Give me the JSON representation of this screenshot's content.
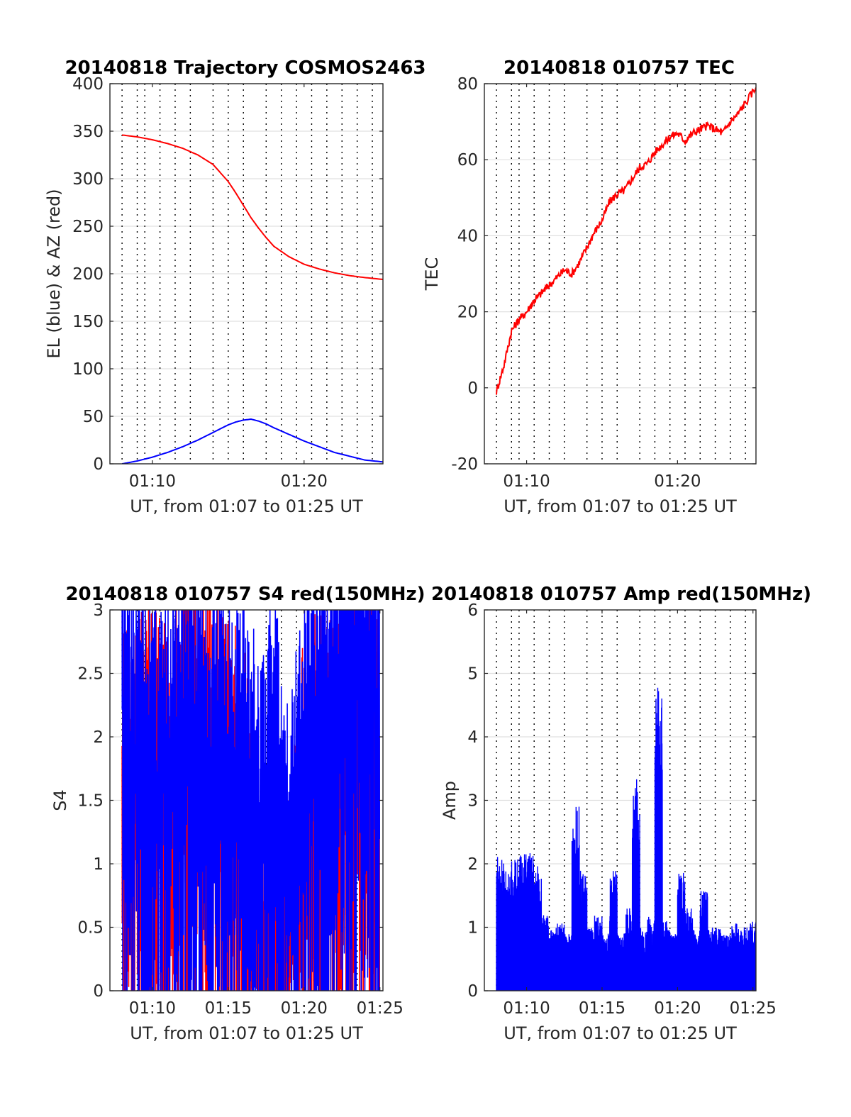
{
  "charts": [
    {
      "title": "20140818 Trajectory COSMOS2463",
      "xlabel": "UT, from 01:07 to 01:25 UT",
      "ylabel": "EL (blue) & AZ (red)",
      "xticks": [
        {
          "v": 10,
          "label": "01:10"
        },
        {
          "v": 20,
          "label": "01:20"
        }
      ],
      "yticks": [
        {
          "v": 0,
          "label": "0"
        },
        {
          "v": 50,
          "label": "50"
        },
        {
          "v": 100,
          "label": "100"
        },
        {
          "v": 150,
          "label": "150"
        },
        {
          "v": 200,
          "label": "200"
        },
        {
          "v": 250,
          "label": "250"
        },
        {
          "v": 300,
          "label": "300"
        },
        {
          "v": 350,
          "label": "350"
        },
        {
          "v": 400,
          "label": "400"
        }
      ]
    },
    {
      "title": "20140818 010757 TEC",
      "xlabel": "UT, from 01:07 to 01:25 UT",
      "ylabel": "TEC",
      "xticks": [
        {
          "v": 10,
          "label": "01:10"
        },
        {
          "v": 20,
          "label": "01:20"
        }
      ],
      "yticks": [
        {
          "v": -20,
          "label": "-20"
        },
        {
          "v": 0,
          "label": "0"
        },
        {
          "v": 20,
          "label": "20"
        },
        {
          "v": 40,
          "label": "40"
        },
        {
          "v": 60,
          "label": "60"
        },
        {
          "v": 80,
          "label": "80"
        }
      ]
    },
    {
      "title": "20140818 010757 S4 red(150MHz)",
      "xlabel": "UT, from 01:07 to 01:25 UT",
      "ylabel": "S4",
      "xticks": [
        {
          "v": 10,
          "label": "01:10"
        },
        {
          "v": 15,
          "label": "01:15"
        },
        {
          "v": 20,
          "label": "01:20"
        },
        {
          "v": 25,
          "label": "01:25"
        }
      ],
      "yticks": [
        {
          "v": 0,
          "label": "0"
        },
        {
          "v": 0.5,
          "label": "0.5"
        },
        {
          "v": 1,
          "label": "1"
        },
        {
          "v": 1.5,
          "label": "1.5"
        },
        {
          "v": 2,
          "label": "2"
        },
        {
          "v": 2.5,
          "label": "2.5"
        },
        {
          "v": 3,
          "label": "3"
        }
      ]
    },
    {
      "title": "20140818 010757 Amp red(150MHz)",
      "xlabel": "UT, from 01:07 to 01:25 UT",
      "ylabel": "Amp",
      "xticks": [
        {
          "v": 10,
          "label": "01:10"
        },
        {
          "v": 15,
          "label": "01:15"
        },
        {
          "v": 20,
          "label": "01:20"
        },
        {
          "v": 25,
          "label": "01:25"
        }
      ],
      "yticks": [
        {
          "v": 0,
          "label": "0"
        },
        {
          "v": 1,
          "label": "1"
        },
        {
          "v": 2,
          "label": "2"
        },
        {
          "v": 3,
          "label": "3"
        },
        {
          "v": 4,
          "label": "4"
        },
        {
          "v": 5,
          "label": "5"
        },
        {
          "v": 6,
          "label": "6"
        }
      ]
    }
  ],
  "chart_data": [
    {
      "type": "line",
      "title": "20140818 Trajectory COSMOS2463",
      "xlabel": "UT, from 01:07 to 01:25 UT",
      "ylabel": "EL (blue) & AZ (red)",
      "x_unit": "minutes after 01:00 UT",
      "xlim": [
        7.2,
        25.2
      ],
      "ylim": [
        0,
        400
      ],
      "grid": true,
      "series": [
        {
          "color": "#ff0000",
          "x": [
            8.0,
            9.0,
            10.0,
            11.0,
            12.0,
            13.0,
            14.0,
            15.0,
            15.5,
            16.0,
            16.5,
            17.0,
            17.5,
            18.0,
            19.0,
            20.0,
            21.0,
            22.0,
            23.0,
            24.0,
            25.2
          ],
          "values": [
            346,
            344,
            341,
            337,
            332,
            325,
            315,
            297,
            285,
            272,
            259,
            248,
            238,
            229,
            218,
            210,
            205,
            201,
            198,
            196,
            194
          ]
        },
        {
          "color": "#0000ff",
          "x": [
            8.0,
            9.0,
            10.0,
            11.0,
            12.0,
            13.0,
            14.0,
            15.0,
            15.5,
            16.0,
            16.5,
            17.0,
            17.5,
            18.0,
            19.0,
            20.0,
            21.0,
            22.0,
            23.0,
            24.0,
            25.2
          ],
          "values": [
            0,
            3,
            7,
            12,
            18,
            25,
            33,
            41,
            44,
            46,
            47,
            45,
            42,
            38,
            31,
            24,
            18,
            12,
            8,
            4,
            2
          ]
        }
      ]
    },
    {
      "type": "line",
      "title": "20140818 010757 TEC",
      "xlabel": "UT, from 01:07 to 01:25 UT",
      "ylabel": "TEC",
      "x_unit": "minutes after 01:00 UT",
      "xlim": [
        7.2,
        25.2
      ],
      "ylim": [
        -20,
        80
      ],
      "grid": true,
      "series": [
        {
          "color": "#ff0000",
          "x": [
            8.0,
            8.5,
            9.0,
            9.5,
            10.0,
            10.5,
            11.0,
            11.5,
            12.0,
            12.5,
            13.0,
            13.5,
            14.0,
            14.5,
            15.0,
            15.5,
            16.0,
            16.5,
            17.0,
            17.5,
            18.0,
            18.5,
            19.0,
            19.5,
            20.0,
            20.5,
            21.0,
            21.5,
            22.0,
            22.5,
            23.0,
            23.5,
            24.0,
            24.5,
            25.2
          ],
          "values": [
            -1,
            6,
            15,
            18,
            20,
            23,
            25,
            27,
            29,
            31,
            30,
            33,
            37,
            41,
            44,
            49,
            51,
            52,
            55,
            58,
            59,
            62,
            64,
            66,
            67,
            65,
            67,
            68,
            69,
            68,
            67,
            70,
            72,
            75,
            79
          ]
        }
      ]
    },
    {
      "type": "line",
      "title": "20140818 010757 S4 red(150MHz)",
      "xlabel": "UT, from 01:07 to 01:25 UT",
      "ylabel": "S4",
      "x_unit": "minutes after 01:00 UT",
      "xlim": [
        7.2,
        25.2
      ],
      "ylim": [
        0,
        3
      ],
      "grid": true,
      "series": [
        {
          "color": "#ff0000",
          "x": [
            8.0,
            9.0,
            10.0,
            11.0,
            12.0,
            13.0,
            14.0,
            15.0,
            16.0,
            17.0,
            18.0,
            19.0,
            20.0,
            21.0,
            22.0,
            23.0,
            24.0,
            25.0
          ],
          "values": [
            1.35,
            1.6,
            1.5,
            1.4,
            1.7,
            1.8,
            1.6,
            1.5,
            1.3,
            0.0,
            0.0,
            0.0,
            1.4,
            1.6,
            1.7,
            1.8,
            1.6,
            2.0
          ]
        },
        {
          "color": "#0000ff",
          "x": [
            8.0,
            9.0,
            10.0,
            11.0,
            12.0,
            13.0,
            14.0,
            15.0,
            16.0,
            17.0,
            18.0,
            19.0,
            20.0,
            21.0,
            22.0,
            23.0,
            24.0,
            25.0
          ],
          "values": [
            2.3,
            1.8,
            1.6,
            1.7,
            1.9,
            1.8,
            1.7,
            1.6,
            1.5,
            1.2,
            1.6,
            0.7,
            1.8,
            2.2,
            2.4,
            2.5,
            2.6,
            2.2
          ]
        }
      ]
    },
    {
      "type": "area",
      "title": "20140818 010757 Amp red(150MHz)",
      "xlabel": "UT, from 01:07 to 01:25 UT",
      "ylabel": "Amp",
      "x_unit": "minutes after 01:00 UT",
      "xlim": [
        7.2,
        25.2
      ],
      "ylim": [
        0,
        6
      ],
      "grid": true,
      "series": [
        {
          "color": "#0000ff",
          "x": [
            8.0,
            8.5,
            9.0,
            9.5,
            10.0,
            10.5,
            11.0,
            11.5,
            12.0,
            12.5,
            13.0,
            13.5,
            14.0,
            14.5,
            15.0,
            15.5,
            16.0,
            16.5,
            17.0,
            17.5,
            18.0,
            18.5,
            19.0,
            19.5,
            20.0,
            20.5,
            21.0,
            21.5,
            22.0,
            22.5,
            23.0,
            23.5,
            24.0,
            24.5,
            25.2
          ],
          "values": [
            2.2,
            1.9,
            2.1,
            2.2,
            2.2,
            2.0,
            1.2,
            1.0,
            1.1,
            0.9,
            2.9,
            1.9,
            1.0,
            1.2,
            0.9,
            1.9,
            0.9,
            1.3,
            3.5,
            1.0,
            1.2,
            4.8,
            1.1,
            0.9,
            1.9,
            1.3,
            1.0,
            1.6,
            1.0,
            1.0,
            0.9,
            1.1,
            1.0,
            1.1,
            1.0
          ]
        }
      ]
    }
  ]
}
